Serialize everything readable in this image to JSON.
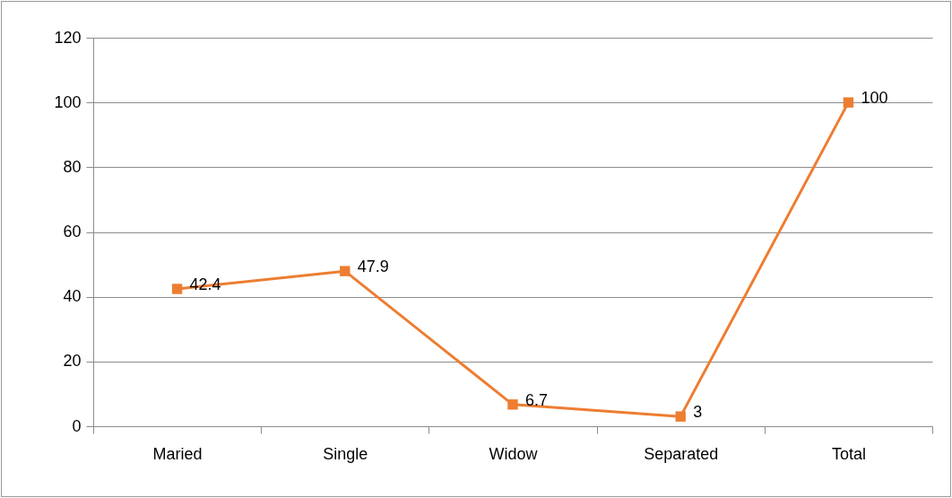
{
  "chart_data": {
    "type": "line",
    "categories": [
      "Maried",
      "Single",
      "Widow",
      "Separated",
      "Total"
    ],
    "series": [
      {
        "color": "#ed7d31",
        "values": [
          42.4,
          47.9,
          6.7,
          3,
          100
        ]
      }
    ],
    "ylim": [
      0,
      120
    ],
    "yticks": [
      0,
      20,
      40,
      60,
      80,
      100,
      120
    ],
    "grid": "y",
    "marker": "square",
    "data_labels": true
  }
}
